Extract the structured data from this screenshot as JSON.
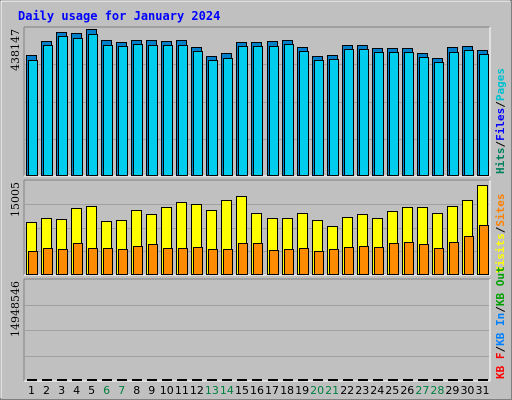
{
  "chart_data": {
    "type": "bar",
    "title": "Daily usage for January 2024",
    "categories": [
      "1",
      "2",
      "3",
      "4",
      "5",
      "6",
      "7",
      "8",
      "9",
      "10",
      "11",
      "12",
      "13",
      "14",
      "15",
      "16",
      "17",
      "18",
      "19",
      "20",
      "21",
      "22",
      "23",
      "24",
      "25",
      "26",
      "27",
      "28",
      "29",
      "30",
      "31"
    ],
    "weekend_days": [
      "6",
      "7",
      "13",
      "14",
      "20",
      "21",
      "27",
      "28"
    ],
    "colors": {
      "background": "#c0c0c0",
      "title": "#0000ff",
      "hits": "#00805c",
      "files": "#0000ff",
      "pages": "#00c0d0",
      "visits": "#ffff00",
      "sites": "#ff8000",
      "kb_in": "#00a000",
      "kb_out": "#0080ff",
      "kb_f": "#ff0000",
      "weekday_label": "#000000",
      "weekend_label": "#008040"
    },
    "panels": [
      {
        "name": "hits-files-pages",
        "ytick": "438147",
        "ymax": 438147,
        "legend": [
          {
            "text": "Hits",
            "color": "#00805c"
          },
          {
            "text": "/",
            "color": "#000000"
          },
          {
            "text": "Files",
            "color": "#0000ff"
          },
          {
            "text": "/",
            "color": "#000000"
          },
          {
            "text": "Pages",
            "color": "#00c0d0"
          }
        ],
        "series": [
          {
            "name": "Hits",
            "color": "#0080c8",
            "values": [
              364000,
              408000,
              436000,
              431000,
              443000,
              410000,
              404000,
              412000,
              410000,
              408000,
              410000,
              390000,
              363000,
              370000,
              404000,
              404000,
              407000,
              412000,
              389000,
              362000,
              366000,
              397000,
              397000,
              387000,
              387000,
              387000,
              372000,
              357000,
              388000,
              393000,
              380000
            ]
          },
          {
            "name": "Files",
            "color": "#00ccee",
            "values": [
              351000,
              395000,
              423000,
              418000,
              430000,
              397000,
              391000,
              399000,
              397000,
              395000,
              397000,
              377000,
              350000,
              357000,
              391000,
              391000,
              394000,
              399000,
              376000,
              349000,
              353000,
              384000,
              384000,
              374000,
              374000,
              374000,
              359000,
              344000,
              375000,
              380000,
              367000
            ]
          }
        ]
      },
      {
        "name": "visits-sites",
        "ytick": "15005",
        "ymax": 15005,
        "legend": [
          {
            "text": "Visits",
            "color": "#ffff00"
          },
          {
            "text": "/",
            "color": "#000000"
          },
          {
            "text": "Sites",
            "color": "#ff8000"
          }
        ],
        "series": [
          {
            "name": "Visits",
            "color": "#ffff00",
            "values": [
              8600,
              9400,
              9200,
              11000,
              11400,
              8900,
              9000,
              10600,
              10000,
              11200,
              12000,
              11600,
              10600,
              12400,
              13000,
              10200,
              9400,
              9400,
              10200,
              9000,
              8000,
              9500,
              10000,
              9400,
              10500,
              11200,
              11100,
              10100,
              11400,
              12300,
              14800
            ]
          },
          {
            "name": "Sites",
            "color": "#ff8c00",
            "values": [
              3800,
              4400,
              4100,
              5200,
              4400,
              4400,
              4200,
              4600,
              5000,
              4400,
              4400,
              4500,
              4200,
              4100,
              5100,
              5100,
              4000,
              4100,
              4400,
              3900,
              4200,
              4500,
              4700,
              4500,
              5100,
              5300,
              5000,
              4400,
              5300,
              6300,
              8100
            ]
          }
        ]
      },
      {
        "name": "kbytes",
        "ytick": "14948546",
        "ymax": 14948546,
        "legend": [
          {
            "text": "KB F",
            "color": "#ff0000"
          },
          {
            "text": "/",
            "color": "#000000"
          },
          {
            "text": "KB In",
            "color": "#0080ff"
          },
          {
            "text": "/",
            "color": "#000000"
          },
          {
            "text": "KB Out",
            "color": "#00a000"
          }
        ],
        "series": [
          {
            "name": "KB F",
            "color": "#ff0000",
            "values": [
              10700,
              11600,
              12000,
              11000,
              10700,
              10500,
              8600,
              10700,
              11000,
              14100,
              14900,
              13600,
              11500,
              13100,
              13000,
              12200,
              11000,
              12900,
              11000,
              12000,
              11100,
              11000,
              10300,
              11000,
              9700,
              11300,
              10800,
              11200,
              10700,
              12400,
              12100
            ]
          }
        ]
      }
    ]
  }
}
